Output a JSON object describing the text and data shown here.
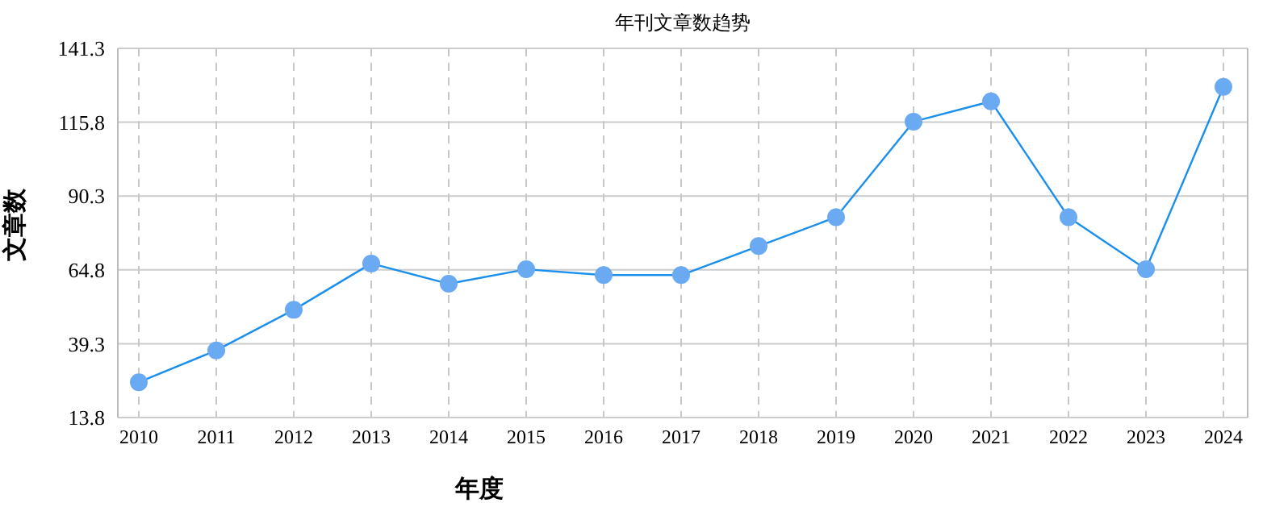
{
  "chart_data": {
    "type": "line",
    "title": "年刊文章数趋势",
    "xlabel": "年度",
    "ylabel": "文章数",
    "categories": [
      "2010",
      "2011",
      "2012",
      "2013",
      "2014",
      "2015",
      "2016",
      "2017",
      "2018",
      "2019",
      "2020",
      "2021",
      "2022",
      "2023",
      "2024"
    ],
    "series": [
      {
        "color": "#1a8fee",
        "values": [
          26,
          37,
          51,
          67,
          60,
          65,
          63,
          63,
          73,
          83,
          116,
          123,
          83,
          65,
          128
        ]
      }
    ],
    "ylim": [
      13.8,
      141.3
    ],
    "yticks": [
      13.8,
      39.3,
      64.8,
      90.3,
      115.8,
      141.3
    ],
    "grid": true,
    "marker": "circle",
    "line_style": "solid"
  }
}
